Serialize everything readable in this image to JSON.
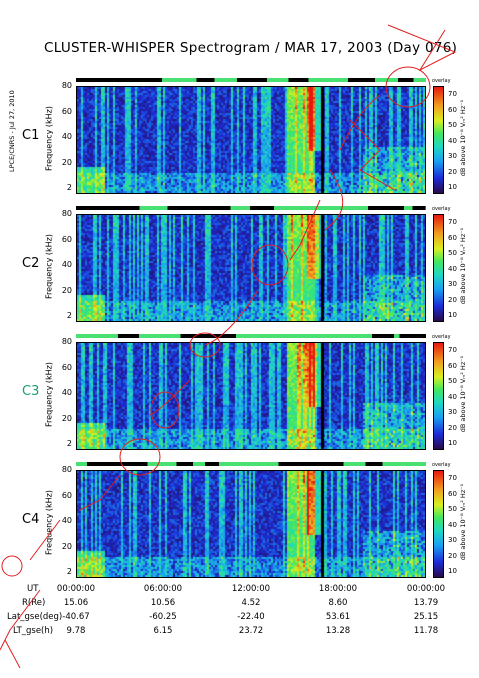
{
  "title": "CLUSTER-WHISPER Spectrogram / MAR 17, 2003 (Day 076)",
  "side_stamp": "LPCE/CNRS - Jul 27, 2010",
  "colors": {
    "background_purple": "#2a0a4a",
    "blue": "#1b2bd6",
    "cyan": "#20d8c0",
    "green": "#40e860",
    "yellow": "#d8f020",
    "red": "#e81810",
    "annotation_red": "#e02020",
    "c3_label": "#1aa070",
    "strip_green": "#48e070"
  },
  "chart_data": {
    "type": "heatmap",
    "panels": [
      {
        "name": "C1",
        "label_color": "#000000"
      },
      {
        "name": "C2",
        "label_color": "#000000"
      },
      {
        "name": "C3",
        "label_color": "#1aa070"
      },
      {
        "name": "C4",
        "label_color": "#000000"
      }
    ],
    "ylabel": "Frequency (kHz)",
    "yticks": [
      "80",
      "60",
      "40",
      "20",
      "2"
    ],
    "ylim": [
      2,
      80
    ],
    "xticks": [
      "00:00:00",
      "06:00:00",
      "12:00:00",
      "18:00:00",
      "00:00:00"
    ],
    "xlim_hours": [
      0,
      24
    ],
    "colorbar": {
      "label": "dB above 10⁻⁸ Vₘ² Hz⁻¹",
      "top_label": "overlay",
      "ticks": [
        "70",
        "60",
        "50",
        "40",
        "30",
        "20",
        "10"
      ],
      "range": [
        10,
        70
      ]
    },
    "grid": false
  },
  "orbit_table": {
    "rows": [
      {
        "label": "UT",
        "values": [
          "00:00:00",
          "06:00:00",
          "12:00:00",
          "18:00:00",
          "00:00:00"
        ]
      },
      {
        "label": "R(Re)",
        "values": [
          "15.06",
          "10.56",
          "4.52",
          "8.60",
          "13.79"
        ]
      },
      {
        "label": "Lat_gse(deg)",
        "values": [
          "-40.67",
          "-60.25",
          "-22.40",
          "53.61",
          "25.15"
        ]
      },
      {
        "label": "LT_gse(h)",
        "values": [
          "9.78",
          "6.15",
          "23.72",
          "13.28",
          "11.78"
        ]
      }
    ]
  }
}
